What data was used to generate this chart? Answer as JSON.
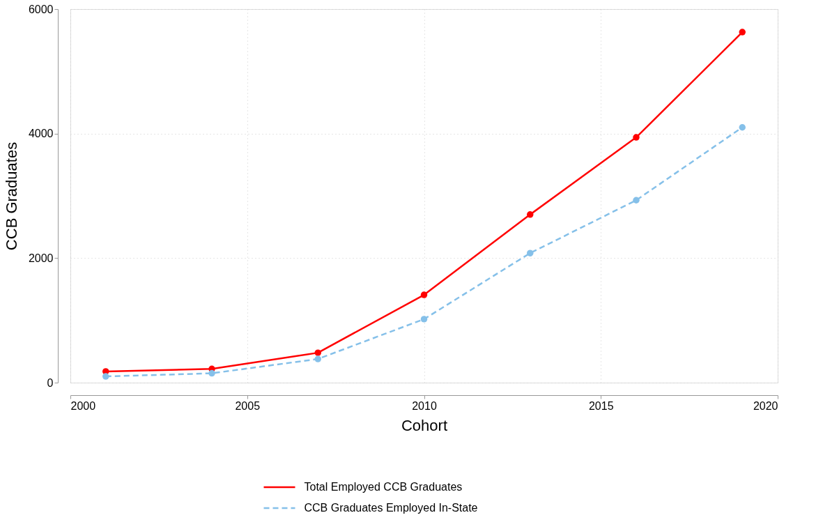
{
  "chart_data": {
    "type": "line",
    "xlabel": "Cohort",
    "ylabel": "CCB Graduates",
    "x": [
      2001,
      2004,
      2007,
      2010,
      2013,
      2016,
      2019
    ],
    "series": [
      {
        "name": "Total Employed CCB Graduates",
        "color": "#ff0000",
        "line_style": "solid",
        "values": [
          180,
          220,
          480,
          1410,
          2700,
          3940,
          5630
        ]
      },
      {
        "name": "CCB Graduates Employed In-State",
        "color": "#85c0e9",
        "line_style": "dashed",
        "values": [
          100,
          150,
          380,
          1020,
          2080,
          2930,
          4100
        ]
      }
    ],
    "xlim": [
      2000,
      2020
    ],
    "xticks": [
      2000,
      2005,
      2010,
      2015,
      2020
    ],
    "ylim": [
      0,
      6000
    ],
    "yticks": [
      0,
      2000,
      4000,
      6000
    ],
    "grid": true,
    "legend": "bottom",
    "marker": "circle"
  }
}
